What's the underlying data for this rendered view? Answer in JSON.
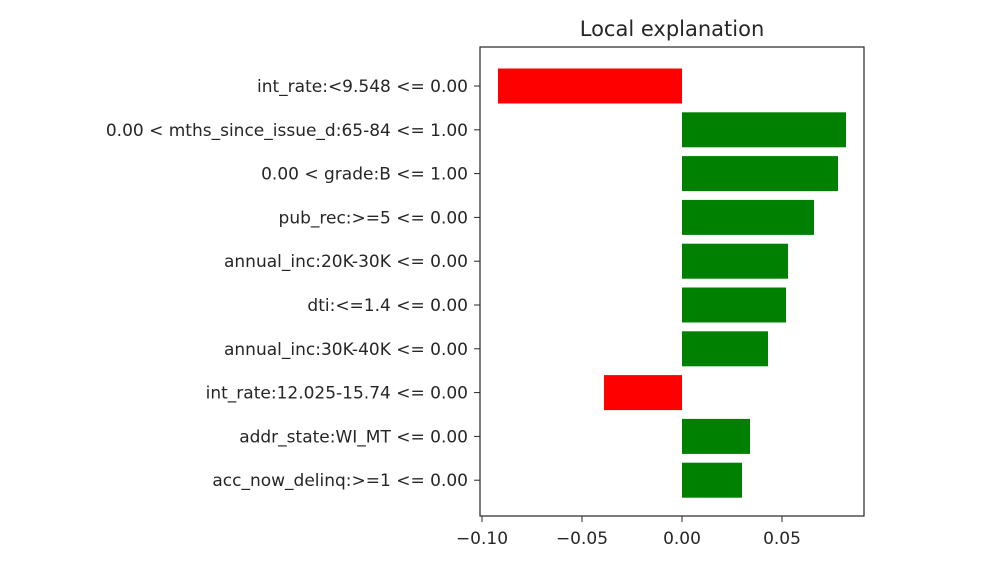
{
  "chart_data": {
    "type": "bar",
    "orientation": "horizontal",
    "title": "Local explanation",
    "xlabel": "",
    "ylabel": "",
    "categories": [
      "int_rate:<9.548 <= 0.00",
      "0.00 < mths_since_issue_d:65-84 <= 1.00",
      "0.00 < grade:B <= 1.00",
      "pub_rec:>=5 <= 0.00",
      "annual_inc:20K-30K <= 0.00",
      "dti:<=1.4 <= 0.00",
      "annual_inc:30K-40K <= 0.00",
      "int_rate:12.025-15.74 <= 0.00",
      "addr_state:WI_MT <= 0.00",
      "acc_now_delinq:>=1 <= 0.00"
    ],
    "values": [
      -0.092,
      0.082,
      0.078,
      0.066,
      0.053,
      0.052,
      0.043,
      -0.039,
      0.034,
      0.03
    ],
    "xlim": [
      -0.101,
      0.091
    ],
    "xticks": [
      -0.1,
      -0.05,
      0.0,
      0.05
    ],
    "xtick_labels": [
      "−0.10",
      "−0.05",
      "0.00",
      "0.05"
    ],
    "grid": false,
    "colors": {
      "positive": "#008000",
      "negative": "#ff0000"
    }
  }
}
